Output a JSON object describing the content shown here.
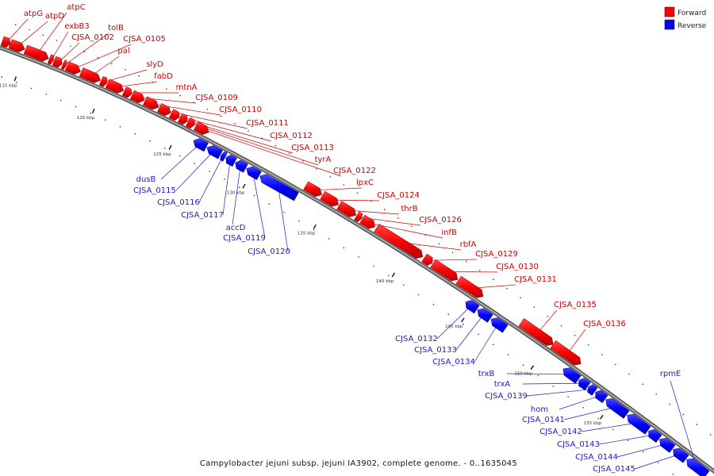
{
  "caption": "Campylobacter jejuni subsp. jejuni IA3902, complete genome. - 0..1635045",
  "legend": {
    "forward": {
      "label": "Forward",
      "color": "#ff0000"
    },
    "reverse": {
      "label": "Reverse",
      "color": "#0000ff"
    }
  },
  "axis": {
    "ticks": [
      "115 kbp",
      "120 kbp",
      "125 kbp",
      "130 kbp",
      "135 kbp",
      "140 kbp",
      "145 kbp",
      "150 kbp",
      "155 kbp"
    ]
  },
  "genes": {
    "forward": [
      "atpG",
      "atpD",
      "atpC",
      "exbB3",
      "CJSA_0102",
      "tolB",
      "CJSA_0105",
      "pal",
      "slyD",
      "fabD",
      "mtnA",
      "CJSA_0109",
      "CJSA_0110",
      "CJSA_0111",
      "CJSA_0112",
      "CJSA_0113",
      "tyrA",
      "CJSA_0122",
      "lpxC",
      "CJSA_0124",
      "thrB",
      "CJSA_0126",
      "infB",
      "rbfA",
      "CJSA_0129",
      "CJSA_0130",
      "CJSA_0131",
      "CJSA_0135",
      "CJSA_0136"
    ],
    "reverse": [
      "dusB",
      "CJSA_0115",
      "CJSA_0116",
      "CJSA_0117",
      "accD",
      "CJSA_0119",
      "CJSA_0120",
      "CJSA_0132",
      "CJSA_0133",
      "CJSA_0134",
      "trxB",
      "trxA",
      "CJSA_0139",
      "hom",
      "CJSA_0141",
      "CJSA_0142",
      "CJSA_0143",
      "CJSA_0144",
      "CJSA_0145",
      "rpmE"
    ]
  }
}
